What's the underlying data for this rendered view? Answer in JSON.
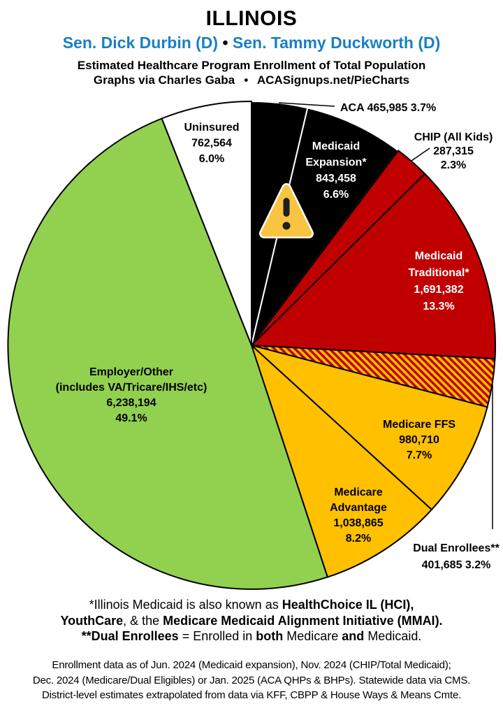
{
  "header": {
    "state": "ILLINOIS",
    "senators": [
      {
        "text": "Sen. Dick Durbin (D)",
        "color": "#1a80c4"
      },
      {
        "text": " • ",
        "color": "#000000"
      },
      {
        "text": "Sen. Tammy Duckworth (D)",
        "color": "#1a80c4"
      }
    ],
    "subtitle1": "Estimated Healthcare Program Enrollment of Total Population",
    "subtitle2": "Graphs via Charles Gaba  •  ACASignups.net/PieCharts",
    "accent_blue": "#1a80c4"
  },
  "chart_data": {
    "type": "pie",
    "title": "Estimated Healthcare Program Enrollment of Total Population",
    "start_angle_deg": 0,
    "direction": "clockwise",
    "slices": [
      {
        "key": "aca",
        "label": "ACA",
        "value": 465985,
        "pct": 3.7,
        "fill": "#000000",
        "stroke": "#ffffff",
        "label_lines": [
          "ACA 465,985 3.7%"
        ]
      },
      {
        "key": "medicaid-expansion",
        "label": "Medicaid Expansion*",
        "value": 843458,
        "pct": 6.6,
        "fill": "#000000",
        "stroke": "#ffffff",
        "text_color": "#ffffff",
        "label_lines": [
          "Medicaid",
          "Expansion*",
          "843,458",
          "6.6%"
        ]
      },
      {
        "key": "chip",
        "label": "CHIP (All Kids)",
        "value": 287315,
        "pct": 2.3,
        "fill": "#c00000",
        "stroke": "#000000",
        "label_lines": [
          "CHIP (All Kids)",
          "287,315",
          "2.3%"
        ]
      },
      {
        "key": "medicaid-traditional",
        "label": "Medicaid Traditional*",
        "value": 1691382,
        "pct": 13.3,
        "fill": "#c00000",
        "stroke": "#000000",
        "text_color": "#ffffff",
        "label_lines": [
          "Medicaid",
          "Traditional*",
          "1,691,382",
          "13.3%"
        ]
      },
      {
        "key": "dual-enrollees",
        "label": "Dual Enrollees**",
        "value": 401685,
        "pct": 3.2,
        "fill": "hatch",
        "stroke": "#000000",
        "label_lines": [
          "Dual Enrollees**",
          "401,685 3.2%"
        ]
      },
      {
        "key": "medicare-ffs",
        "label": "Medicare FFS",
        "value": 980710,
        "pct": 7.7,
        "fill": "#ffc000",
        "stroke": "#000000",
        "label_lines": [
          "Medicare FFS",
          "980,710",
          "7.7%"
        ]
      },
      {
        "key": "medicare-advantage",
        "label": "Medicare Advantage",
        "value": 1038865,
        "pct": 8.2,
        "fill": "#ffc000",
        "stroke": "#000000",
        "label_lines": [
          "Medicare",
          "Advantage",
          "1,038,865",
          "8.2%"
        ]
      },
      {
        "key": "employer-other",
        "label": "Employer/Other (includes VA/Tricare/IHS/etc)",
        "value": 6238194,
        "pct": 49.1,
        "fill": "#92d050",
        "stroke": "#000000",
        "label_lines": [
          "Employer/Other",
          "(includes VA/Tricare/IHS/etc)",
          "6,238,194",
          "49.1%"
        ]
      },
      {
        "key": "uninsured",
        "label": "Uninsured",
        "value": 762564,
        "pct": 6.0,
        "fill": "#ffffff",
        "stroke": "#000000",
        "label_lines": [
          "Uninsured",
          "762,564",
          "6.0%"
        ]
      }
    ],
    "hatch_colors": {
      "bg": "#ffc000",
      "stripe": "#c00000"
    },
    "warning_icon_colors": {
      "fill": "#f9c440",
      "outline": "#ffffff",
      "mark": "#1f1f1f"
    }
  },
  "footnotes": [
    [
      {
        "t": "*Illinois Medicaid is also known as ",
        "b": false
      },
      {
        "t": "HealthChoice IL (HCI)",
        "b": true
      },
      {
        "t": ",",
        "b": true
      }
    ],
    [
      {
        "t": "YouthCare",
        "b": true
      },
      {
        "t": ", & the ",
        "b": false
      },
      {
        "t": "Medicare Medicaid Alignment Initiative (MMAI).",
        "b": true
      }
    ],
    [
      {
        "t": "**Dual Enrollees",
        "b": true
      },
      {
        "t": " = Enrolled in ",
        "b": false
      },
      {
        "t": "both",
        "b": true
      },
      {
        "t": " Medicare ",
        "b": false
      },
      {
        "t": "and",
        "b": true
      },
      {
        "t": " Medicaid.",
        "b": false
      }
    ]
  ],
  "source_note": [
    "Enrollment data as of Jun. 2024 (Medicaid expansion), Nov. 2024 (CHIP/Total Medicaid);",
    "Dec. 2024 (Medicare/Dual Eligibles) or Jan. 2025 (ACA QHPs & BHPs). Statewide data via CMS.",
    "District-level estimates extrapolated from data via KFF, CBPP & House Ways & Means Cmte."
  ]
}
